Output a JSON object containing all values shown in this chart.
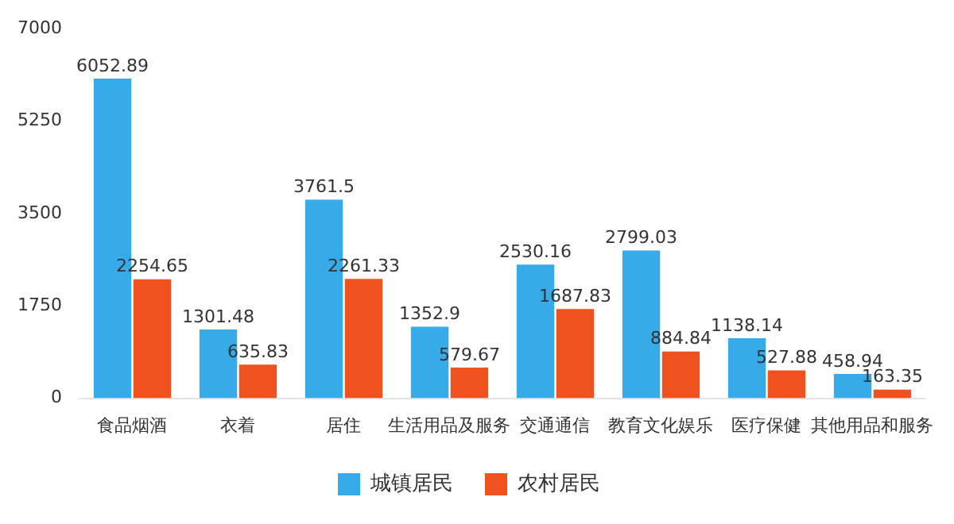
{
  "chart_data": {
    "type": "bar",
    "categories": [
      "食品烟酒",
      "衣着",
      "居住",
      "生活用品及服务",
      "交通通信",
      "教育文化娱乐",
      "医疗保健",
      "其他用品和服务"
    ],
    "series": [
      {
        "name": "城镇居民",
        "color": "#37aaea",
        "values": [
          6052.89,
          1301.48,
          3761.5,
          1352.9,
          2530.16,
          2799.03,
          1138.14,
          458.94
        ]
      },
      {
        "name": "农村居民",
        "color": "#f0521f",
        "values": [
          2254.65,
          635.83,
          2261.33,
          579.67,
          1687.83,
          884.84,
          527.88,
          163.35
        ]
      }
    ],
    "ylim": [
      0,
      7000
    ],
    "yticks": [
      0,
      1750,
      3500,
      5250,
      7000
    ],
    "grid": false,
    "legend": "bottom",
    "data_labels": true
  }
}
